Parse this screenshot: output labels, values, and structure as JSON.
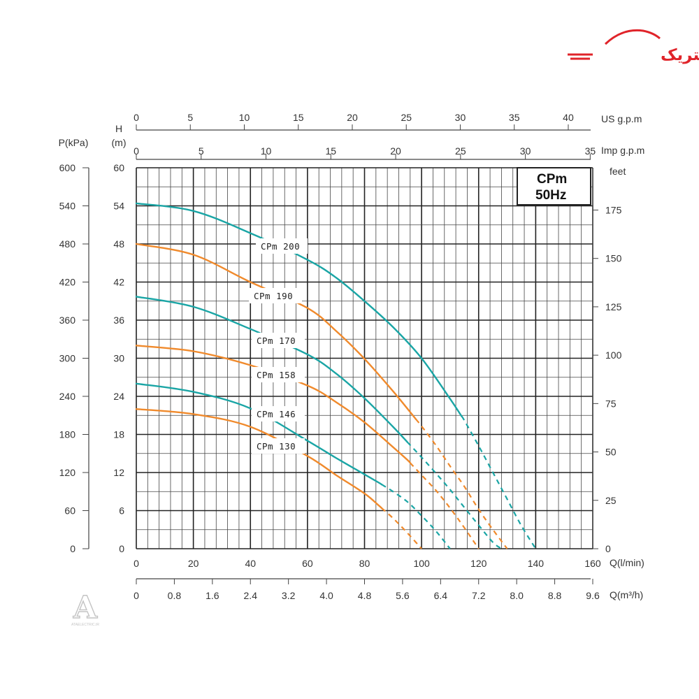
{
  "brand": {
    "logo_text": "آتاالکتریک",
    "watermark_letter": "A",
    "watermark_caption": "ATAELECTRIC.IR",
    "color": "#e0242a"
  },
  "chart_data": {
    "type": "line",
    "model_box": [
      "CPm",
      "50Hz"
    ],
    "axes": {
      "flow_lmin": {
        "label": "Q(l/min)",
        "range": [
          0,
          160
        ],
        "ticks": [
          "0",
          "20",
          "40",
          "60",
          "80",
          "100",
          "120",
          "140",
          "160"
        ]
      },
      "flow_m3h": {
        "label": "Q(m³/h)",
        "range": [
          0,
          9.6
        ],
        "ticks": [
          "0",
          "0.8",
          "1.6",
          "2.4",
          "3.2",
          "4.0",
          "4.8",
          "5.6",
          "6.4",
          "7.2",
          "8.0",
          "8.8",
          "9.6"
        ]
      },
      "flow_us_gpm": {
        "label": "US  g.p.m",
        "range": [
          0,
          42.27
        ],
        "ticks": [
          "0",
          "5",
          "10",
          "15",
          "20",
          "25",
          "30",
          "35",
          "40"
        ]
      },
      "flow_imp_gpm": {
        "label": "Imp  g.p.m",
        "range": [
          0,
          35.2
        ],
        "ticks": [
          "0",
          "5",
          "10",
          "15",
          "20",
          "25",
          "30",
          "35"
        ]
      },
      "head_m": {
        "label": "H",
        "unit": "(m)",
        "range": [
          0,
          60
        ],
        "ticks": [
          "0",
          "6",
          "12",
          "18",
          "24",
          "30",
          "36",
          "42",
          "48",
          "54",
          "60"
        ]
      },
      "pressure_kpa": {
        "label": "P(kPa)",
        "range": [
          0,
          600
        ],
        "ticks": [
          "0",
          "60",
          "120",
          "180",
          "240",
          "300",
          "360",
          "420",
          "480",
          "540",
          "600"
        ]
      },
      "head_feet": {
        "label": "feet",
        "range": [
          0,
          196.85
        ],
        "ticks": [
          "0",
          "25",
          "50",
          "75",
          "100",
          "125",
          "150",
          "175"
        ]
      }
    },
    "grid": true,
    "series": [
      {
        "name": "CPm 200",
        "color": "#1aa5a5",
        "x": [
          0,
          20,
          40,
          60,
          70,
          80,
          90,
          100,
          110,
          115,
          120,
          125,
          130,
          135,
          140
        ],
        "y": [
          54.4,
          53.2,
          49.7,
          45.5,
          42.7,
          39.0,
          34.9,
          30.0,
          23.6,
          20.2,
          16.2,
          12.0,
          7.8,
          3.6,
          0
        ],
        "solid_until": 114
      },
      {
        "name": "CPm 190",
        "color": "#f08a2c",
        "x": [
          0,
          20,
          40,
          60,
          70,
          80,
          90,
          100,
          105,
          110,
          115,
          120,
          125,
          130
        ],
        "y": [
          48.0,
          46.3,
          42.0,
          37.9,
          34.3,
          29.9,
          24.8,
          19.3,
          16.3,
          13.0,
          9.8,
          6.2,
          3.0,
          0
        ],
        "solid_until": 98
      },
      {
        "name": "CPm 170",
        "color": "#1aa5a5",
        "x": [
          0,
          20,
          40,
          60,
          70,
          80,
          90,
          95,
          100,
          105,
          110,
          115,
          120,
          125,
          128
        ],
        "y": [
          39.7,
          38.1,
          34.6,
          30.6,
          27.6,
          23.7,
          19.2,
          16.8,
          14.4,
          11.9,
          9.3,
          6.5,
          3.7,
          1.0,
          0
        ],
        "solid_until": 95
      },
      {
        "name": "CPm 158",
        "color": "#f08a2c",
        "x": [
          0,
          20,
          40,
          60,
          70,
          80,
          90,
          95,
          100,
          105,
          110,
          115,
          120
        ],
        "y": [
          32.0,
          31.1,
          28.9,
          25.7,
          23.1,
          19.9,
          16.0,
          14.0,
          11.6,
          9.2,
          6.4,
          3.3,
          0
        ],
        "solid_until": 96
      },
      {
        "name": "CPm 146",
        "color": "#1aa5a5",
        "x": [
          0,
          20,
          40,
          60,
          70,
          80,
          85,
          90,
          95,
          100,
          105,
          110
        ],
        "y": [
          26.0,
          24.7,
          22.1,
          17.0,
          14.3,
          11.7,
          10.4,
          9.0,
          7.4,
          5.2,
          2.8,
          0
        ],
        "solid_until": 86
      },
      {
        "name": "CPm 130",
        "color": "#f08a2c",
        "x": [
          0,
          20,
          40,
          60,
          70,
          80,
          85,
          90,
          95,
          100
        ],
        "y": [
          22.0,
          21.2,
          19.2,
          14.6,
          11.6,
          8.7,
          6.8,
          4.8,
          2.5,
          0
        ],
        "solid_until": 86
      }
    ],
    "labels": [
      "CPm 200",
      "CPm 190",
      "CPm 170",
      "CPm 158",
      "CPm 146",
      "CPm 130"
    ]
  }
}
